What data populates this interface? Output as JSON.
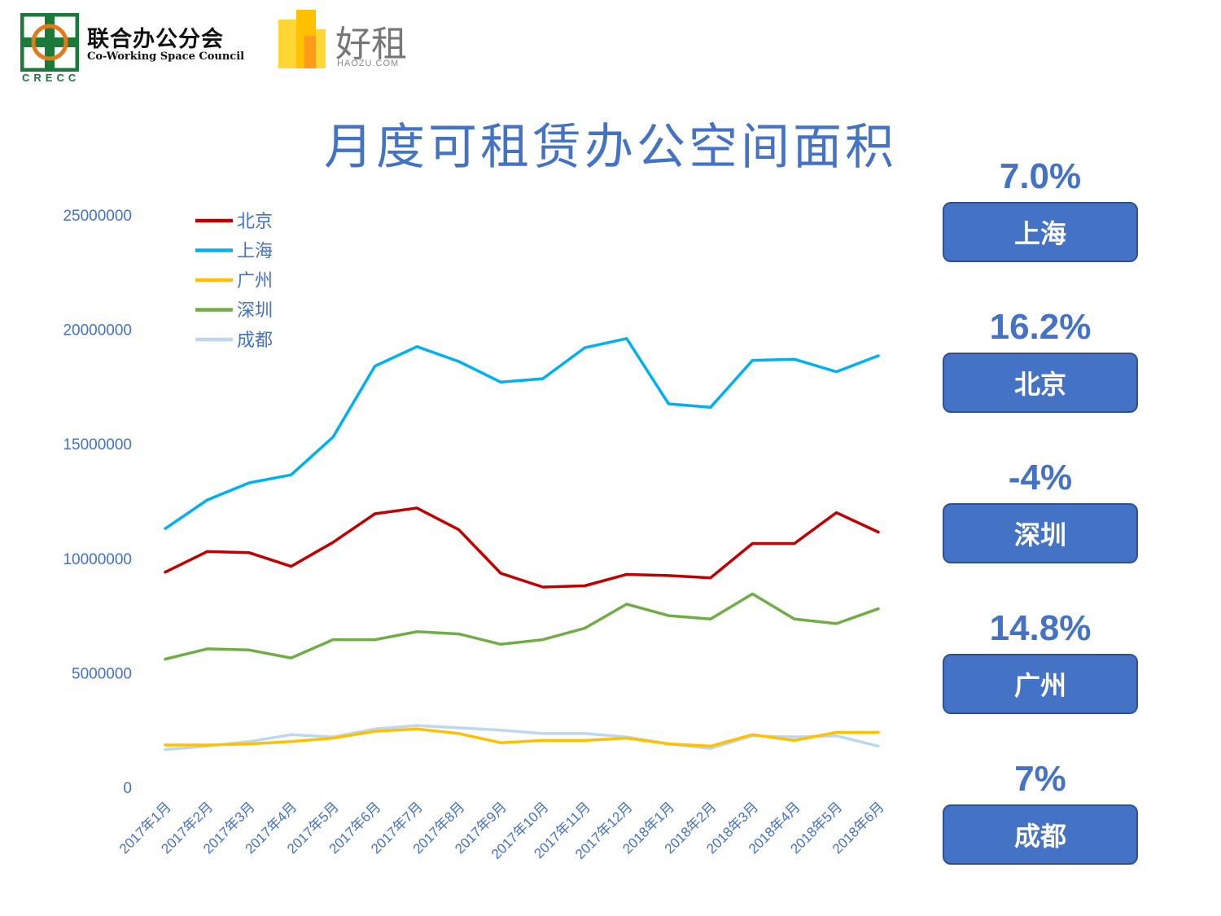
{
  "header": {
    "crecc_name_cn": "联合办公分会",
    "crecc_name_en": "Co-Working Space Council",
    "crecc_abbr": "CRECC",
    "haozu_cn": "好租",
    "haozu_en": "HAOZU.COM"
  },
  "page_title": "月度可租赁办公空间面积",
  "stats": [
    {
      "pct": "7.0%",
      "city": "上海"
    },
    {
      "pct": "16.2%",
      "city": "北京"
    },
    {
      "pct": "-4%",
      "city": "深圳"
    },
    {
      "pct": "14.8%",
      "city": "广州"
    },
    {
      "pct": "7%",
      "city": "成都"
    }
  ],
  "colors": {
    "accent": "#4472c4",
    "beijing": "#c00000",
    "shanghai": "#00b0f0",
    "guangzhou": "#ffc000",
    "shenzhen": "#70ad47",
    "chengdu": "#bdd7ee"
  },
  "chart_data": {
    "type": "line",
    "title": "月度可租赁办公空间面积",
    "ylim": [
      0,
      25000000
    ],
    "yticks": [
      "25000000",
      "20000000",
      "15000000",
      "10000000",
      "5000000",
      "0"
    ],
    "categories": [
      "2017年1月",
      "2017年2月",
      "2017年3月",
      "2017年4月",
      "2017年5月",
      "2017年6月",
      "2017年7月",
      "2017年8月",
      "2017年9月",
      "2017年10月",
      "2017年11月",
      "2017年12月",
      "2018年1月",
      "2018年2月",
      "2018年3月",
      "2018年4月",
      "2018年5月",
      "2018年6月"
    ],
    "legend_position": "top-left",
    "series": [
      {
        "name": "北京",
        "color": "#c00000",
        "values": [
          9400000,
          10300000,
          10250000,
          9650000,
          10700000,
          11950000,
          12200000,
          11250000,
          9350000,
          8750000,
          8800000,
          9300000,
          9250000,
          9150000,
          10650000,
          10650000,
          12000000,
          11150000
        ]
      },
      {
        "name": "上海",
        "color": "#00b0f0",
        "values": [
          11300000,
          12550000,
          13300000,
          13650000,
          15300000,
          18400000,
          19250000,
          18600000,
          17700000,
          17850000,
          19200000,
          19600000,
          16750000,
          16600000,
          18650000,
          18700000,
          18150000,
          18850000
        ]
      },
      {
        "name": "广州",
        "color": "#ffc000",
        "values": [
          1850000,
          1850000,
          1900000,
          2000000,
          2150000,
          2450000,
          2550000,
          2350000,
          1950000,
          2050000,
          2050000,
          2150000,
          1900000,
          1800000,
          2300000,
          2050000,
          2400000,
          2400000
        ]
      },
      {
        "name": "深圳",
        "color": "#70ad47",
        "values": [
          5600000,
          6050000,
          6000000,
          5650000,
          6450000,
          6450000,
          6800000,
          6700000,
          6250000,
          6450000,
          6950000,
          8000000,
          7500000,
          7350000,
          8450000,
          7350000,
          7150000,
          7800000
        ]
      },
      {
        "name": "成都",
        "color": "#bdd7ee",
        "values": [
          1650000,
          1800000,
          2000000,
          2300000,
          2200000,
          2550000,
          2700000,
          2600000,
          2500000,
          2350000,
          2350000,
          2200000,
          1900000,
          1700000,
          2250000,
          2200000,
          2250000,
          1800000
        ]
      }
    ]
  }
}
